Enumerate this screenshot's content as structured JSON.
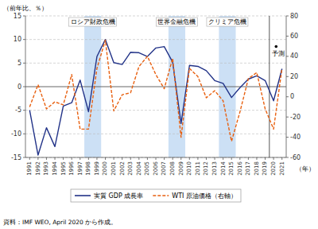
{
  "chart_data": {
    "type": "line",
    "x": [
      1991,
      1992,
      1993,
      1994,
      1995,
      1996,
      1997,
      1998,
      1999,
      2000,
      2001,
      2002,
      2003,
      2004,
      2005,
      2006,
      2007,
      2008,
      2009,
      2010,
      2011,
      2012,
      2013,
      2014,
      2015,
      2016,
      2017,
      2018,
      2019,
      2020,
      2021
    ],
    "xlim": [
      1990.5,
      2021.5
    ],
    "xticks": [
      1991,
      1992,
      1993,
      1994,
      1995,
      1996,
      1997,
      1998,
      1999,
      2000,
      2001,
      2002,
      2003,
      2004,
      2005,
      2006,
      2007,
      2008,
      2009,
      2010,
      2011,
      2012,
      2013,
      2014,
      2015,
      2016,
      2017,
      2018,
      2019,
      2020,
      2021
    ],
    "x_label": "（年）",
    "y_label": "（前年比、％）",
    "ylim": [
      -15,
      15
    ],
    "yticks": [
      -15,
      -10,
      -5,
      0,
      5,
      10,
      15
    ],
    "y2lim": [
      -60,
      80
    ],
    "y2ticks": [
      -60,
      -40,
      -20,
      0,
      20,
      40,
      60,
      80
    ],
    "grid": true,
    "legend": "bottom",
    "series": [
      {
        "name": "実質 GDP 成長率",
        "color": "#223388",
        "line_style": "solid",
        "values": [
          -5.0,
          -14.5,
          -8.7,
          -12.7,
          -4.1,
          -3.4,
          1.4,
          -5.3,
          6.4,
          10.0,
          5.1,
          4.7,
          7.3,
          7.2,
          6.4,
          8.2,
          8.5,
          5.2,
          -7.8,
          4.5,
          4.3,
          3.4,
          1.3,
          0.7,
          -2.3,
          -0.2,
          1.6,
          2.3,
          1.3,
          -3.0,
          3.8
        ]
      },
      {
        "name": "WTI 原油価格（右軸）",
        "color": "#e86010",
        "line_style": "dashed",
        "axis": "y2",
        "values": [
          -10.0,
          12.0,
          -12.0,
          -5.0,
          -8.0,
          22.0,
          -32.0,
          -32.0,
          28.0,
          56.0,
          -14.0,
          2.0,
          4.0,
          30.0,
          40.0,
          22.0,
          8.0,
          38.0,
          -40.0,
          28.0,
          20.0,
          -1.0,
          6.0,
          -4.0,
          -44.0,
          -15.0,
          18.0,
          24.0,
          -12.0,
          -32.0,
          28.0
        ]
      }
    ],
    "crisis_zones": [
      {
        "start": 1997.5,
        "end": 1999.5,
        "label": "ロシア財政危機"
      },
      {
        "start": 2007.5,
        "end": 2009.5,
        "label": "世界金融危機"
      },
      {
        "start": 2013.5,
        "end": 2015.5,
        "label": "クリミア危機"
      }
    ],
    "crisis_color": "#cce0f5",
    "forecast_line": 2019.5,
    "forecast_label": "予測",
    "forecast_point": {
      "x": 2020.3,
      "y": 8.5
    },
    "source": "資料：IMF WEO, April 2020 から作成。"
  }
}
